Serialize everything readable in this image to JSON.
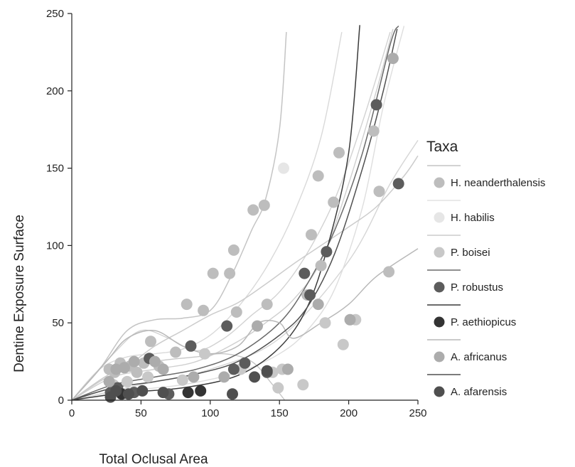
{
  "chart_data": {
    "type": "scatter",
    "xlabel": "Total Oclusal Area",
    "ylabel": "Dentine Exposure Surface",
    "xlim": [
      0,
      250
    ],
    "ylim": [
      0,
      250
    ],
    "xticks": [
      "0",
      "50",
      "100",
      "150",
      "200",
      "250"
    ],
    "yticks": [
      "0",
      "50",
      "100",
      "150",
      "200",
      "250"
    ],
    "grid": false,
    "legend": {
      "title": "Taxa",
      "placement": "right"
    },
    "series": [
      {
        "name": "H. neanderthalensis",
        "color": "#bdbdbd",
        "line_color": "#c4c4c4",
        "points": [
          [
            27,
            20
          ],
          [
            31,
            18
          ],
          [
            35,
            24
          ],
          [
            42,
            22
          ],
          [
            47,
            18
          ],
          [
            52,
            24
          ],
          [
            57,
            38
          ],
          [
            63,
            22
          ],
          [
            75,
            31
          ],
          [
            83,
            62
          ],
          [
            95,
            58
          ],
          [
            102,
            82
          ],
          [
            114,
            82
          ],
          [
            117,
            97
          ],
          [
            119,
            57
          ],
          [
            131,
            123
          ],
          [
            139,
            126
          ],
          [
            141,
            62
          ],
          [
            170,
            68
          ],
          [
            173,
            107
          ],
          [
            178,
            145
          ],
          [
            180,
            87
          ],
          [
            189,
            128
          ],
          [
            193,
            160
          ],
          [
            218,
            174
          ],
          [
            222,
            135
          ],
          [
            229,
            83
          ]
        ],
        "curve": [
          [
            0,
            0
          ],
          [
            20,
            20
          ],
          [
            40,
            45
          ],
          [
            60,
            52
          ],
          [
            80,
            53
          ],
          [
            100,
            58
          ],
          [
            115,
            80
          ],
          [
            130,
            110
          ],
          [
            140,
            130
          ],
          [
            150,
            175
          ],
          [
            155,
            238
          ]
        ]
      },
      {
        "name": "H. habilis",
        "color": "#e6e6e6",
        "line_color": "#e2e2e2",
        "points": [
          [
            153,
            150
          ]
        ],
        "curve": []
      },
      {
        "name": "P. boisei",
        "color": "#c8c8c8",
        "line_color": "#cccccc",
        "points": [
          [
            30,
            10
          ],
          [
            40,
            12
          ],
          [
            55,
            15
          ],
          [
            80,
            13
          ],
          [
            96,
            30
          ],
          [
            122,
            20
          ],
          [
            145,
            18
          ],
          [
            149,
            8
          ],
          [
            152,
            20
          ],
          [
            167,
            10
          ],
          [
            183,
            50
          ],
          [
            196,
            36
          ],
          [
            205,
            52
          ]
        ],
        "curve": [
          [
            0,
            0
          ],
          [
            20,
            12
          ],
          [
            40,
            22
          ],
          [
            60,
            35
          ],
          [
            80,
            45
          ],
          [
            100,
            55
          ],
          [
            120,
            63
          ],
          [
            140,
            75
          ],
          [
            160,
            88
          ],
          [
            180,
            100
          ],
          [
            200,
            112
          ],
          [
            220,
            125
          ],
          [
            240,
            145
          ],
          [
            250,
            158
          ]
        ]
      },
      {
        "name": "P. robustus",
        "color": "#5c5c5c",
        "line_color": "#6a6a6a",
        "points": [
          [
            28,
            5
          ],
          [
            33,
            8
          ],
          [
            45,
            5
          ],
          [
            56,
            27
          ],
          [
            70,
            4
          ],
          [
            86,
            35
          ],
          [
            112,
            48
          ],
          [
            117,
            20
          ],
          [
            125,
            24
          ],
          [
            141,
            18
          ],
          [
            168,
            82
          ],
          [
            172,
            68
          ],
          [
            184,
            96
          ],
          [
            220,
            191
          ],
          [
            236,
            140
          ]
        ],
        "curve": [
          [
            0,
            0
          ],
          [
            30,
            10
          ],
          [
            60,
            15
          ],
          [
            90,
            20
          ],
          [
            120,
            30
          ],
          [
            150,
            50
          ],
          [
            170,
            75
          ],
          [
            190,
            110
          ],
          [
            210,
            160
          ],
          [
            230,
            230
          ],
          [
            236,
            242
          ]
        ]
      },
      {
        "name": "P. aethiopicus",
        "color": "#333333",
        "line_color": "#3a3a3a",
        "points": [
          [
            36,
            4
          ],
          [
            84,
            5
          ],
          [
            93,
            6
          ]
        ],
        "curve": [
          [
            0,
            0
          ],
          [
            40,
            5
          ],
          [
            80,
            8
          ],
          [
            120,
            16
          ],
          [
            150,
            34
          ],
          [
            170,
            60
          ],
          [
            185,
            100
          ],
          [
            200,
            160
          ],
          [
            208,
            243
          ]
        ]
      },
      {
        "name": "A. africanus",
        "color": "#acacac",
        "line_color": "#b8b8b8",
        "points": [
          [
            27,
            12
          ],
          [
            32,
            20
          ],
          [
            38,
            21
          ],
          [
            45,
            25
          ],
          [
            60,
            25
          ],
          [
            66,
            20
          ],
          [
            88,
            15
          ],
          [
            110,
            15
          ],
          [
            134,
            48
          ],
          [
            156,
            20
          ],
          [
            178,
            62
          ],
          [
            201,
            52
          ],
          [
            232,
            221
          ]
        ],
        "curve": [
          [
            0,
            0
          ],
          [
            25,
            25
          ],
          [
            40,
            40
          ],
          [
            60,
            45
          ],
          [
            80,
            35
          ],
          [
            100,
            30
          ],
          [
            120,
            35
          ],
          [
            135,
            50
          ],
          [
            150,
            50
          ],
          [
            160,
            40
          ],
          [
            180,
            50
          ],
          [
            200,
            62
          ],
          [
            220,
            80
          ],
          [
            250,
            98
          ]
        ]
      },
      {
        "name": "A. afarensis",
        "color": "#4f4f4f",
        "line_color": "#505050",
        "points": [
          [
            28,
            2
          ],
          [
            32,
            6
          ],
          [
            41,
            4
          ],
          [
            51,
            6
          ],
          [
            66,
            5
          ],
          [
            116,
            4
          ],
          [
            132,
            15
          ],
          [
            141,
            19
          ]
        ],
        "curve": [
          [
            0,
            0
          ],
          [
            30,
            8
          ],
          [
            60,
            12
          ],
          [
            90,
            17
          ],
          [
            120,
            25
          ],
          [
            150,
            42
          ],
          [
            170,
            60
          ],
          [
            190,
            95
          ],
          [
            210,
            150
          ],
          [
            225,
            200
          ],
          [
            235,
            240
          ]
        ]
      }
    ],
    "extra_curves": [
      {
        "color": "#d2d2d2",
        "points": [
          [
            0,
            0
          ],
          [
            30,
            30
          ],
          [
            50,
            45
          ],
          [
            70,
            40
          ],
          [
            90,
            32
          ],
          [
            110,
            40
          ],
          [
            130,
            55
          ],
          [
            150,
            70
          ],
          [
            170,
            95
          ],
          [
            190,
            130
          ],
          [
            210,
            180
          ],
          [
            230,
            238
          ]
        ]
      },
      {
        "color": "#d9d9d9",
        "points": [
          [
            0,
            0
          ],
          [
            20,
            20
          ],
          [
            40,
            28
          ],
          [
            60,
            30
          ],
          [
            80,
            33
          ],
          [
            100,
            42
          ],
          [
            120,
            60
          ],
          [
            140,
            85
          ],
          [
            160,
            120
          ],
          [
            180,
            170
          ],
          [
            195,
            238
          ]
        ]
      },
      {
        "color": "#cfcfcf",
        "points": [
          [
            0,
            0
          ],
          [
            30,
            15
          ],
          [
            60,
            20
          ],
          [
            90,
            25
          ],
          [
            120,
            38
          ],
          [
            140,
            50
          ],
          [
            160,
            65
          ],
          [
            180,
            90
          ],
          [
            200,
            140
          ],
          [
            220,
            200
          ],
          [
            232,
            240
          ]
        ]
      },
      {
        "color": "#d6d6d6",
        "points": [
          [
            0,
            0
          ],
          [
            50,
            10
          ],
          [
            100,
            20
          ],
          [
            150,
            40
          ],
          [
            200,
            90
          ],
          [
            230,
            140
          ],
          [
            250,
            168
          ]
        ]
      },
      {
        "color": "#c7c7c7",
        "points": [
          [
            0,
            0
          ],
          [
            30,
            18
          ],
          [
            60,
            25
          ],
          [
            90,
            28
          ],
          [
            110,
            30
          ],
          [
            130,
            25
          ],
          [
            145,
            10
          ],
          [
            158,
            -5
          ]
        ]
      },
      {
        "color": "#dedede",
        "points": [
          [
            0,
            0
          ],
          [
            40,
            6
          ],
          [
            80,
            10
          ],
          [
            120,
            18
          ],
          [
            150,
            30
          ],
          [
            170,
            45
          ],
          [
            190,
            72
          ],
          [
            210,
            125
          ],
          [
            225,
            190
          ],
          [
            240,
            242
          ]
        ]
      }
    ]
  }
}
